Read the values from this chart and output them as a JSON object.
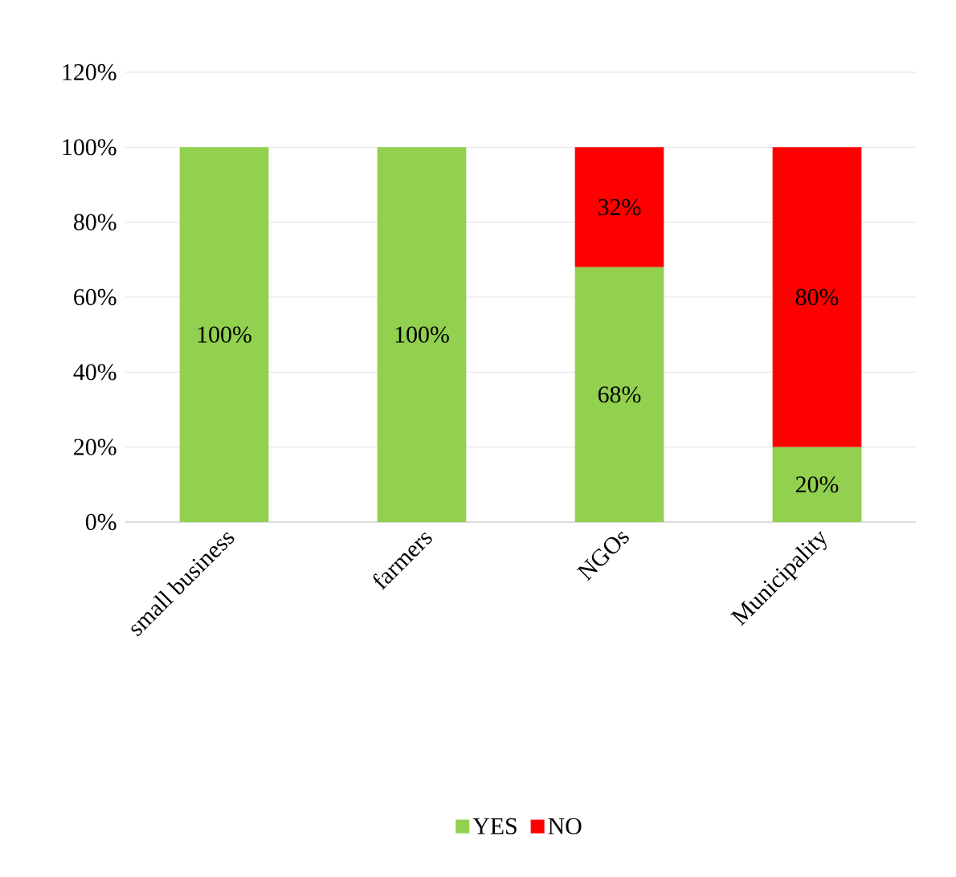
{
  "chart_data": {
    "type": "bar",
    "stacked": true,
    "categories": [
      "small business",
      "farmers",
      "NGOs",
      "Municipality"
    ],
    "series": [
      {
        "name": "YES",
        "color": "#92d050",
        "values": [
          100,
          100,
          68,
          20
        ],
        "value_labels": [
          "100%",
          "100%",
          "68%",
          "20%"
        ]
      },
      {
        "name": "NO",
        "color": "#ff0000",
        "values": [
          0,
          0,
          32,
          80
        ],
        "value_labels": [
          null,
          null,
          "32%",
          "80%"
        ]
      }
    ],
    "ylim": [
      0,
      120
    ],
    "yticks": [
      {
        "value": 0,
        "label": "0%"
      },
      {
        "value": 20,
        "label": "20%"
      },
      {
        "value": 40,
        "label": "40%"
      },
      {
        "value": 60,
        "label": "60%"
      },
      {
        "value": 80,
        "label": "80%"
      },
      {
        "value": 100,
        "label": "100%"
      },
      {
        "value": 120,
        "label": "120%"
      }
    ],
    "grid": "y",
    "legend": "bottom"
  }
}
